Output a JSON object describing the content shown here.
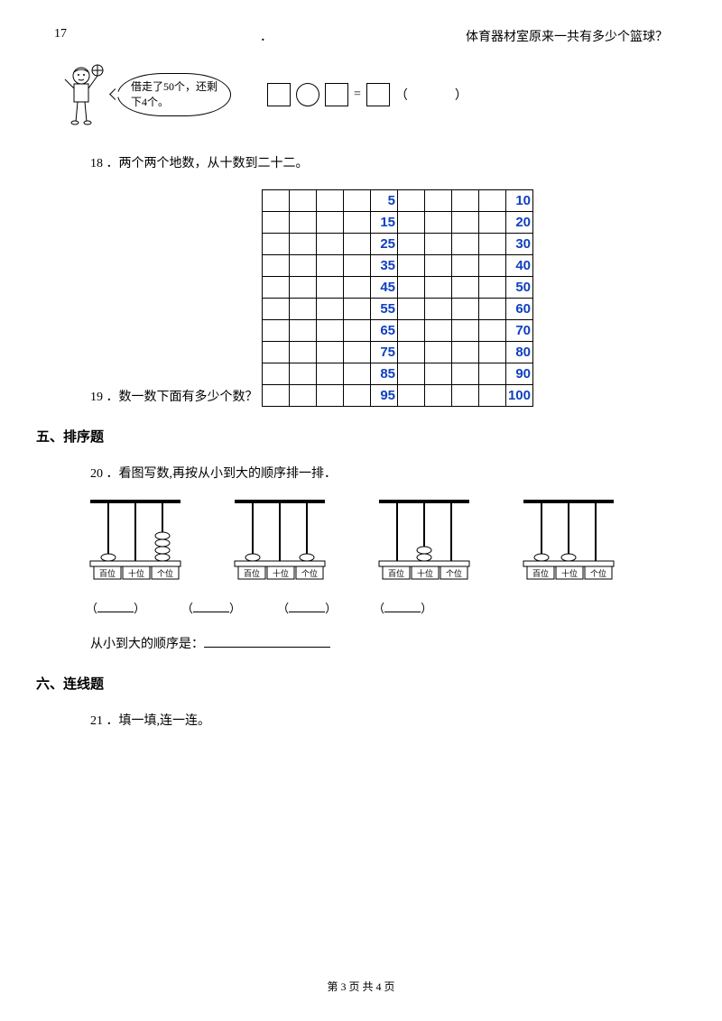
{
  "q17": {
    "number": "17",
    "period": "．",
    "right_text": "体育器材室原来一共有多少个篮球？",
    "speech_line1": "借走了50个，还剩",
    "speech_line2": "下4个。",
    "equals": "=",
    "paren_open": "（",
    "paren_close": "）"
  },
  "q18": {
    "text": "18 ．两个两个地数，从十数到二十二。"
  },
  "number_grid": {
    "text_color": "#1040c0",
    "border_color": "#000000",
    "rows": [
      [
        "",
        "",
        "",
        "",
        "5",
        "",
        "",
        "",
        "",
        "10"
      ],
      [
        "",
        "",
        "",
        "",
        "15",
        "",
        "",
        "",
        "",
        "20"
      ],
      [
        "",
        "",
        "",
        "",
        "25",
        "",
        "",
        "",
        "",
        "30"
      ],
      [
        "",
        "",
        "",
        "",
        "35",
        "",
        "",
        "",
        "",
        "40"
      ],
      [
        "",
        "",
        "",
        "",
        "45",
        "",
        "",
        "",
        "",
        "50"
      ],
      [
        "",
        "",
        "",
        "",
        "55",
        "",
        "",
        "",
        "",
        "60"
      ],
      [
        "",
        "",
        "",
        "",
        "65",
        "",
        "",
        "",
        "",
        "70"
      ],
      [
        "",
        "",
        "",
        "",
        "75",
        "",
        "",
        "",
        "",
        "80"
      ],
      [
        "",
        "",
        "",
        "",
        "85",
        "",
        "",
        "",
        "",
        "90"
      ],
      [
        "",
        "",
        "",
        "",
        "95",
        "",
        "",
        "",
        "",
        "100"
      ]
    ]
  },
  "q19": {
    "text": "19 ．数一数下面有多少个数？"
  },
  "section5": {
    "heading": "五、排序题"
  },
  "q20": {
    "text": "20 ．看图写数,再按从小到大的顺序排一排．",
    "labels": {
      "bai": "百位",
      "shi": "十位",
      "ge": "个位"
    },
    "abacus": [
      {
        "bai": 1,
        "shi": 0,
        "ge": 4
      },
      {
        "bai": 1,
        "shi": 0,
        "ge": 1
      },
      {
        "bai": 0,
        "shi": 2,
        "ge": 0
      },
      {
        "bai": 1,
        "shi": 1,
        "ge": 0
      }
    ],
    "ordering_label": "从小到大的顺序是："
  },
  "section6": {
    "heading": "六、连线题"
  },
  "q21": {
    "text": "21 ．填一填,连一连。"
  },
  "footer": "第 3 页 共 4 页"
}
